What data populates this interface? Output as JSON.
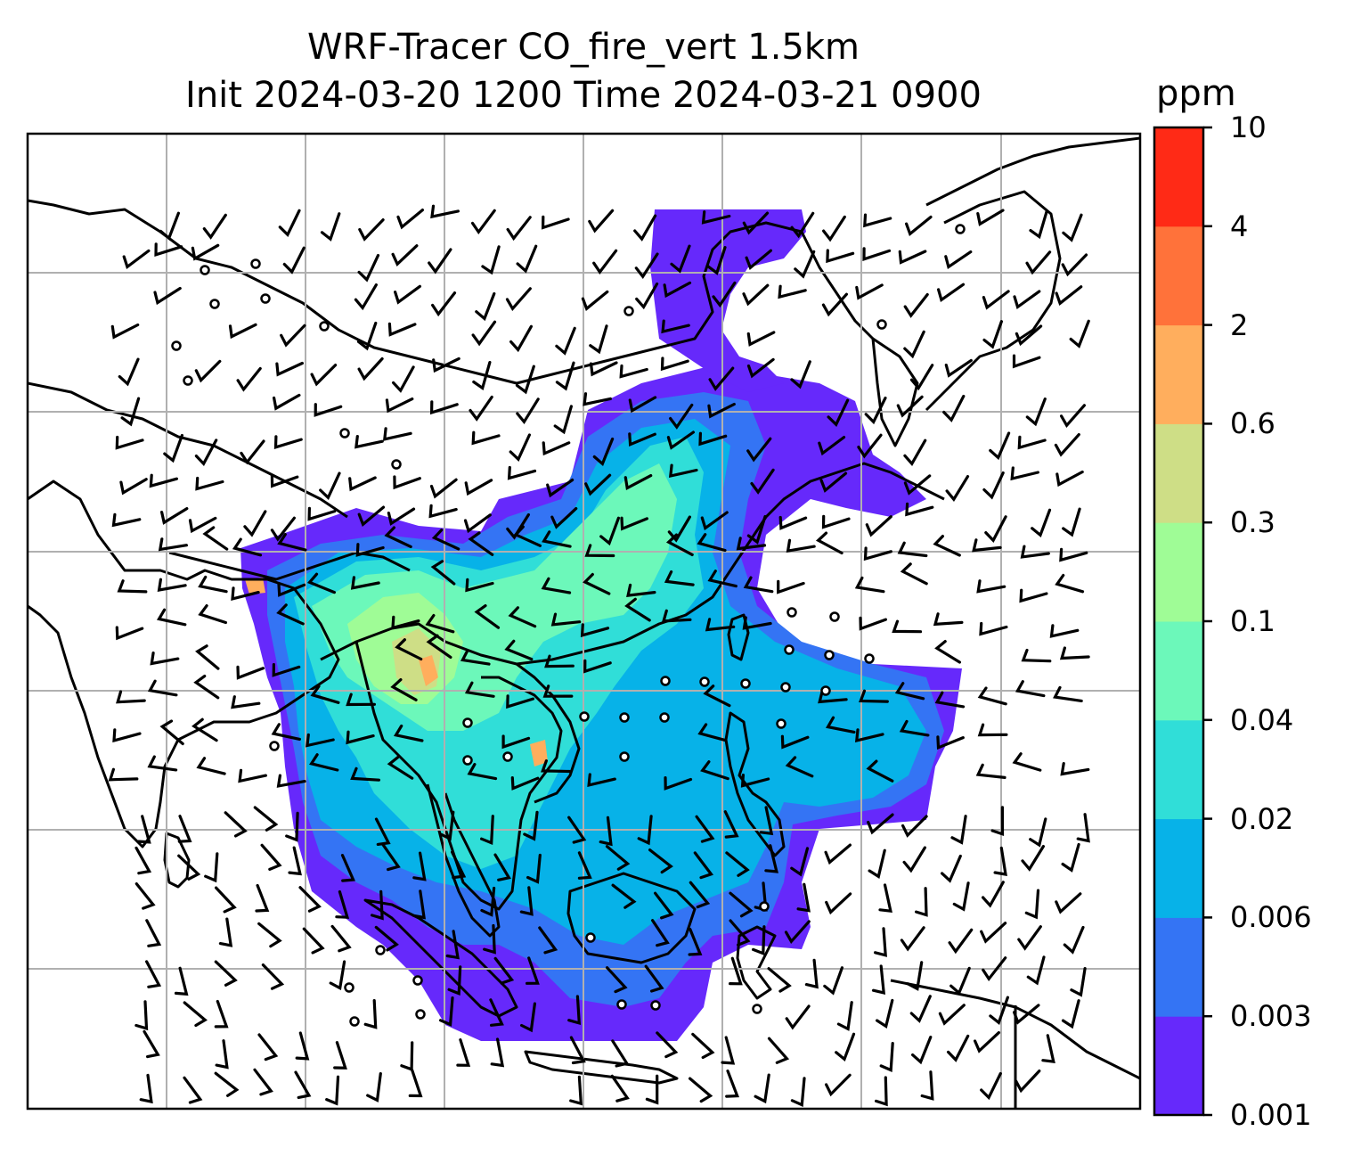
{
  "title": {
    "line1": "WRF-Tracer CO_fire_vert 1.5km",
    "line2": "Init 2024-03-20 1200 Time 2024-03-21 0900"
  },
  "colorbar": {
    "unit": "ppm",
    "tick_labels": [
      "0.001",
      "0.003",
      "0.006",
      "0.02",
      "0.04",
      "0.1",
      "0.3",
      "0.6",
      "2",
      "4",
      "10"
    ],
    "colors": [
      "#6629fb",
      "#3474f4",
      "#07b2e8",
      "#30ded8",
      "#6cf8ba",
      "#9ffc96",
      "#cede86",
      "#ffae5d",
      "#ff723a",
      "#ff2a16"
    ]
  },
  "map": {
    "gridlines": true,
    "coastlines": true,
    "wind_barbs": true,
    "calm_markers": true
  }
}
